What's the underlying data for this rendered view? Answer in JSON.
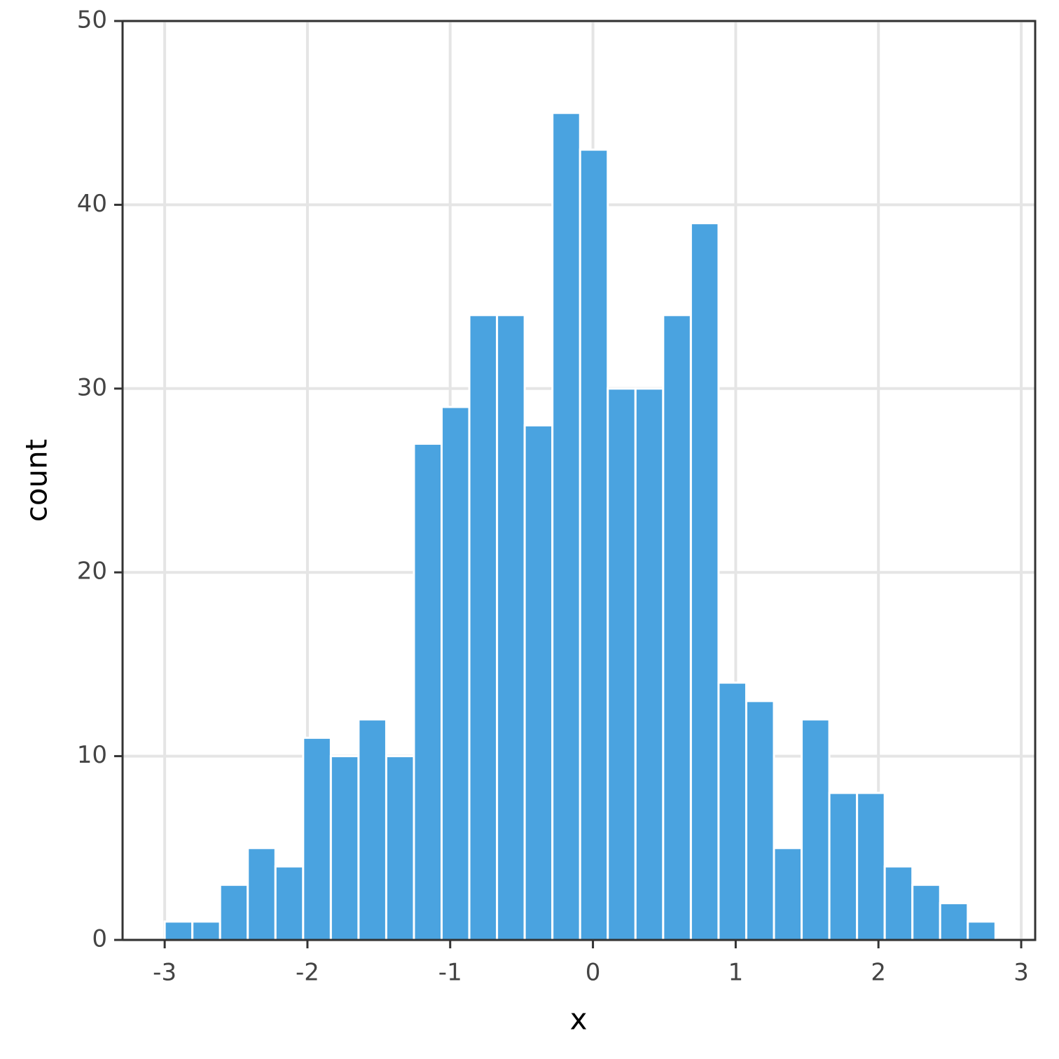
{
  "chart_data": {
    "type": "histogram",
    "x_label": "x",
    "y_label": "count",
    "bins": [
      -3,
      -2.806,
      -2.612,
      -2.418,
      -2.224,
      -2.03,
      -1.836,
      -1.642,
      -1.448,
      -1.254,
      -1.06,
      -0.866,
      -0.672,
      -0.478,
      -0.284,
      -0.09,
      0.104,
      0.298,
      0.492,
      0.686,
      0.88,
      1.074,
      1.268,
      1.462,
      1.656,
      1.85,
      2.044,
      2.238,
      2.432,
      2.626,
      2.82
    ],
    "values": [
      1,
      1,
      3,
      5,
      4,
      11,
      10,
      12,
      10,
      27,
      29,
      34,
      34,
      28,
      45,
      43,
      30,
      30,
      34,
      39,
      14,
      13,
      5,
      12,
      8,
      8,
      4,
      3,
      2,
      1
    ],
    "color": "#4aa3e0",
    "xlim": [
      -3.295,
      3.098
    ],
    "ylim": [
      0,
      50
    ],
    "xticks": [
      -3,
      -2,
      -1,
      0,
      1,
      2,
      3
    ],
    "yticks": [
      0,
      10,
      20,
      30,
      40,
      50
    ],
    "grid": true
  }
}
